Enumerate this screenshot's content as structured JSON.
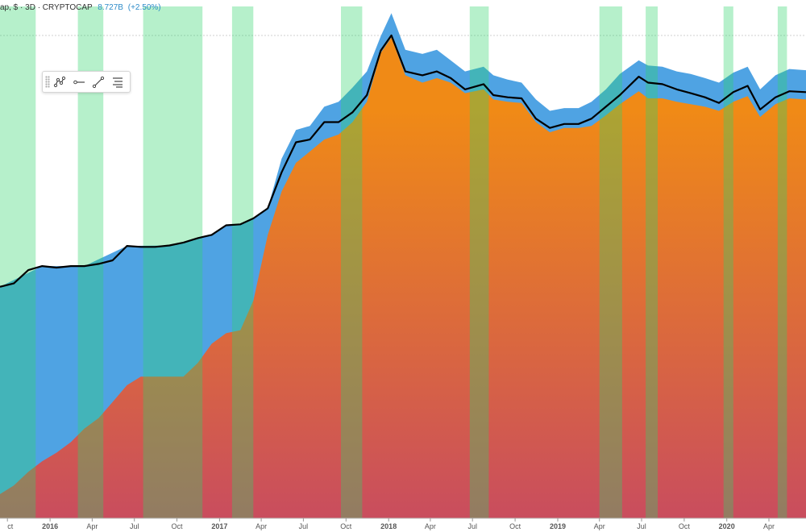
{
  "header": {
    "title": "ap, $ · 3D · CRYPTOCAP",
    "value": "8.727B",
    "change": "(+2.50%)"
  },
  "toolbar": {
    "buttons": [
      {
        "name": "pattern-tool-icon"
      },
      {
        "name": "horizontal-ray-icon"
      },
      {
        "name": "trend-line-icon"
      },
      {
        "name": "fib-levels-icon"
      }
    ]
  },
  "colors": {
    "alt_area": "#4fa3e3",
    "btc_top": "#f08a16",
    "btc_bottom": "#c94d5e",
    "dominance_band": "#2fd36b",
    "line": "#000000",
    "grid": "#d7d7d7"
  },
  "chart_data": {
    "type": "area",
    "x_axis_ticks": [
      "ct",
      "2016",
      "Apr",
      "Jul",
      "Oct",
      "2017",
      "Apr",
      "Jul",
      "Oct",
      "2018",
      "Apr",
      "Jul",
      "Oct",
      "2019",
      "Apr",
      "Jul",
      "Oct",
      "2020",
      "Apr"
    ],
    "x_range": [
      "2015-09-15",
      "2020-06-20"
    ],
    "y_scale": "log",
    "series": [
      {
        "style": "black line",
        "x": [
          "2015-09-15",
          "2015-10-15",
          "2015-11-15",
          "2015-12-15",
          "2016-01-15",
          "2016-02-15",
          "2016-03-15",
          "2016-04-15",
          "2016-05-15",
          "2016-06-15",
          "2016-07-15",
          "2016-08-15",
          "2016-09-15",
          "2016-10-15",
          "2016-11-15",
          "2016-12-15",
          "2017-01-15",
          "2017-02-15",
          "2017-03-15",
          "2017-04-15",
          "2017-05-15",
          "2017-06-15",
          "2017-07-15",
          "2017-08-15",
          "2017-09-15",
          "2017-10-15",
          "2017-11-15",
          "2017-12-15",
          "2018-01-07",
          "2018-02-06",
          "2018-03-15",
          "2018-04-15",
          "2018-05-15",
          "2018-06-15",
          "2018-07-25",
          "2018-08-15",
          "2018-09-15",
          "2018-10-15",
          "2018-11-15",
          "2018-12-15",
          "2019-01-15",
          "2019-02-15",
          "2019-03-15",
          "2019-04-15",
          "2019-05-15",
          "2019-06-25",
          "2019-07-15",
          "2019-08-15",
          "2019-09-15",
          "2019-10-15",
          "2019-11-15",
          "2019-12-15",
          "2020-01-15",
          "2020-02-15",
          "2020-03-13",
          "2020-04-15",
          "2020-05-15",
          "2020-06-20"
        ],
        "values": [
          4.0,
          4.3,
          5.7,
          6.2,
          6.0,
          6.2,
          6.2,
          6.5,
          7.0,
          9.5,
          9.3,
          9.3,
          9.6,
          10.2,
          11.2,
          12.0,
          14.7,
          15.0,
          17.0,
          21.0,
          45.0,
          85.0,
          90.0,
          130.0,
          130.0,
          160.0,
          230.0,
          590.0,
          813.0,
          380.0,
          350.0,
          380.0,
          330.0,
          260.0,
          290.0,
          230.0,
          220.0,
          215.0,
          140.0,
          115.0,
          125.0,
          125.0,
          140.0,
          180.0,
          230.0,
          340.0,
          300.0,
          290.0,
          260.0,
          240.0,
          220.0,
          195.0,
          245.0,
          280.0,
          170.0,
          220.0,
          250.0,
          245.0
        ]
      },
      {
        "style": "blue area",
        "x": [
          "2015-09-15",
          "2015-12-15",
          "2016-03-15",
          "2016-06-15",
          "2016-09-15",
          "2016-12-15",
          "2017-01-15",
          "2017-02-15",
          "2017-03-15",
          "2017-04-15",
          "2017-05-15",
          "2017-06-15",
          "2017-07-15",
          "2017-08-15",
          "2017-09-15",
          "2017-10-15",
          "2017-11-15",
          "2017-12-15",
          "2018-01-07",
          "2018-02-06",
          "2018-03-15",
          "2018-04-15",
          "2018-05-15",
          "2018-06-15",
          "2018-07-25",
          "2018-08-15",
          "2018-09-15",
          "2018-10-15",
          "2018-11-15",
          "2018-12-15",
          "2019-01-15",
          "2019-02-15",
          "2019-03-15",
          "2019-04-15",
          "2019-05-15",
          "2019-06-25",
          "2019-07-15",
          "2019-08-15",
          "2019-09-15",
          "2019-10-15",
          "2019-11-15",
          "2019-12-15",
          "2020-01-15",
          "2020-02-15",
          "2020-03-13",
          "2020-04-15",
          "2020-05-15",
          "2020-06-20"
        ],
        "values": [
          4.0,
          6.2,
          6.2,
          9.5,
          9.6,
          12.0,
          14.7,
          15.0,
          17.0,
          21.0,
          60.0,
          110.0,
          120.0,
          180.0,
          200.0,
          270.0,
          380.0,
          800.0,
          1300.0,
          600.0,
          550.0,
          600.0,
          480.0,
          380.0,
          420.0,
          350.0,
          320.0,
          300.0,
          210.0,
          165.0,
          175.0,
          175.0,
          200.0,
          260.0,
          360.0,
          480.0,
          430.0,
          420.0,
          380.0,
          360.0,
          330.0,
          300.0,
          370.0,
          420.0,
          260.0,
          350.0,
          400.0,
          390.0
        ]
      },
      {
        "style": "orange-red gradient area",
        "x": [
          "2015-09-15",
          "2015-10-15",
          "2015-11-15",
          "2015-12-15",
          "2016-01-15",
          "2016-02-15",
          "2016-03-15",
          "2016-04-15",
          "2016-05-15",
          "2016-06-15",
          "2016-07-15",
          "2016-08-15",
          "2016-09-15",
          "2016-10-15",
          "2016-11-15",
          "2016-12-15",
          "2017-01-15",
          "2017-02-15",
          "2017-03-15",
          "2017-04-15",
          "2017-05-15",
          "2017-06-15",
          "2017-07-15",
          "2017-08-15",
          "2017-09-15",
          "2017-10-15",
          "2017-11-15",
          "2017-12-15",
          "2018-01-07",
          "2018-02-06",
          "2018-03-15",
          "2018-04-15",
          "2018-05-15",
          "2018-06-15",
          "2018-07-25",
          "2018-08-15",
          "2018-09-15",
          "2018-10-15",
          "2018-11-15",
          "2018-12-15",
          "2019-01-15",
          "2019-02-15",
          "2019-03-15",
          "2019-04-15",
          "2019-05-15",
          "2019-06-25",
          "2019-07-15",
          "2019-08-15",
          "2019-09-15",
          "2019-10-15",
          "2019-11-15",
          "2019-12-15",
          "2020-01-15",
          "2020-02-15",
          "2020-03-13",
          "2020-04-15",
          "2020-05-15",
          "2020-06-20"
        ],
        "values": [
          0.05,
          0.06,
          0.08,
          0.1,
          0.12,
          0.15,
          0.2,
          0.25,
          0.35,
          0.5,
          0.6,
          0.6,
          0.6,
          0.6,
          0.8,
          1.2,
          1.5,
          1.6,
          3.0,
          12.0,
          30.0,
          55.0,
          70.0,
          90.0,
          100.0,
          130.0,
          200.0,
          560.0,
          780.0,
          350.0,
          300.0,
          330.0,
          300.0,
          240.0,
          260.0,
          210.0,
          200.0,
          195.0,
          130.0,
          105.0,
          115.0,
          115.0,
          120.0,
          150.0,
          190.0,
          250.0,
          215.0,
          215.0,
          200.0,
          190.0,
          180.0,
          165.0,
          200.0,
          225.0,
          145.0,
          190.0,
          215.0,
          210.0
        ]
      }
    ],
    "highlight_bands": [
      [
        "2015-09-15",
        "2015-12-01"
      ],
      [
        "2016-03-01",
        "2016-04-25"
      ],
      [
        "2016-07-20",
        "2016-11-25"
      ],
      [
        "2017-01-28",
        "2017-03-15"
      ],
      [
        "2017-09-20",
        "2017-11-05"
      ],
      [
        "2018-06-25",
        "2018-08-05"
      ],
      [
        "2019-04-01",
        "2019-05-20"
      ],
      [
        "2019-07-10",
        "2019-08-05"
      ],
      [
        "2019-12-25",
        "2020-01-15"
      ],
      [
        "2020-04-20",
        "2020-05-10"
      ]
    ]
  }
}
